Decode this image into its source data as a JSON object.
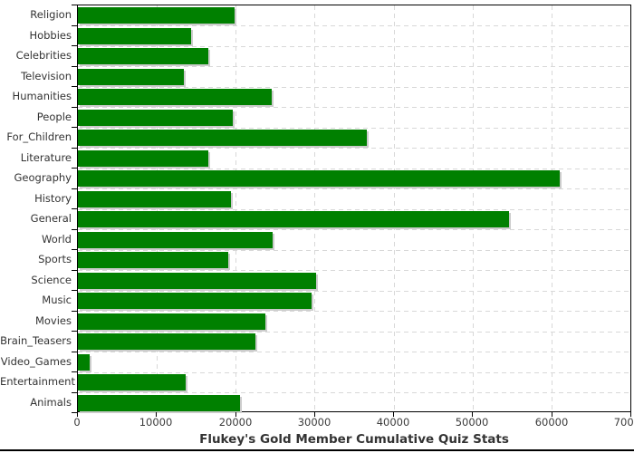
{
  "chart_data": {
    "type": "bar",
    "orientation": "horizontal",
    "title": "Flukey's Gold Member Cumulative Quiz Stats",
    "categories": [
      "Religion",
      "Hobbies",
      "Celebrities",
      "Television",
      "Humanities",
      "People",
      "For_Children",
      "Literature",
      "Geography",
      "History",
      "General",
      "World",
      "Sports",
      "Science",
      "Music",
      "Movies",
      "Brain_Teasers",
      "Video_Games",
      "Entertainment",
      "Animals"
    ],
    "values": [
      19800,
      14300,
      16500,
      13400,
      24500,
      19600,
      36600,
      16500,
      61100,
      19400,
      54600,
      24700,
      19000,
      30200,
      29600,
      23800,
      22500,
      1500,
      13600,
      20500
    ],
    "xlabel": "",
    "ylabel": "",
    "xlim": [
      0,
      70000
    ],
    "x_ticks": [
      0,
      10000,
      20000,
      30000,
      40000,
      50000,
      60000,
      70000
    ],
    "x_tick_labels": [
      "0",
      "10000",
      "20000",
      "30000",
      "40000",
      "50000",
      "60000",
      "70000"
    ],
    "grid": "dashed horizontal and vertical",
    "legend": "none",
    "colors": {
      "bar_fill": "#008000",
      "bar_shadow": "#cccccc",
      "grid_line": "#d8d8d8",
      "axis_line": "#000000",
      "tick_label": "#3c3c3c",
      "title": "#333333",
      "background": "#ffffff"
    }
  }
}
